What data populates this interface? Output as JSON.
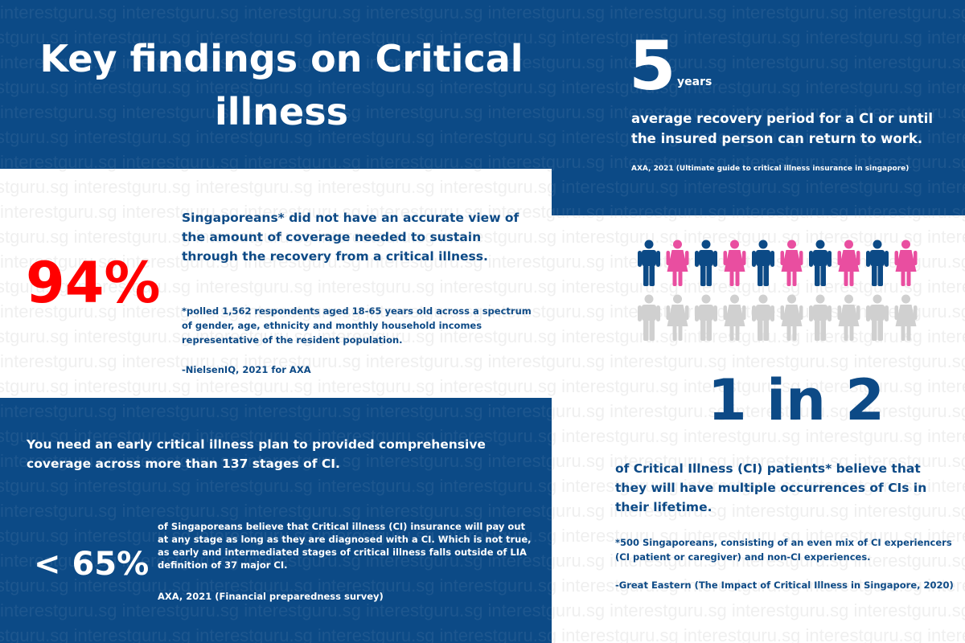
{
  "watermark": "interestguru.sg",
  "colors": {
    "panel": "#0c4a86",
    "accent_red": "#ff0000",
    "pink": "#e94ea0",
    "gray": "#d0d0d0"
  },
  "title": "Key findings on Critical illness",
  "recovery_stat": {
    "number": "5",
    "unit": "years",
    "text": "average recovery period for a CI or until the insured person can return to work.",
    "source": "AXA, 2021 (Ultimate guide to critical illness insurance in singapore)"
  },
  "coverage_stat": {
    "percent": "94%",
    "text": "Singaporeans* did not have an accurate view of the amount of coverage needed to sustain through the recovery from a critical illness.",
    "note": "*polled 1,562 respondents aged 18-65 years old across a spectrum of gender, age, ethnicity and monthly household incomes representative of the resident population.",
    "source": "-NielsenIQ, 2021 for AXA"
  },
  "early_plan": {
    "text": "You need an early critical illness plan to provided comprehensive coverage across more than 137 stages of CI."
  },
  "payout_stat": {
    "percent": "< 65%",
    "text": "of Singaporeans believe that Critical illness (CI) insurance will pay out at any stage as long as they are diagnosed with a CI. Which is not true, as early and intermediated stages of critical illness falls outside of LIA definition of 37 major CI.",
    "source": "AXA, 2021 (Financial preparedness survey)"
  },
  "ratio_stat": {
    "ratio": "1 in 2",
    "pictogram": {
      "highlighted": 10,
      "total": 20
    },
    "text": "of Critical Illness (CI) patients* believe that they will have multiple occurrences of CIs in their lifetime.",
    "note": "*500 Singaporeans, consisting of an even mix of CI experiencers (CI patient or caregiver) and non-CI experiences.",
    "source": "-Great Eastern (The Impact of Critical Illness in Singapore, 2020)"
  }
}
